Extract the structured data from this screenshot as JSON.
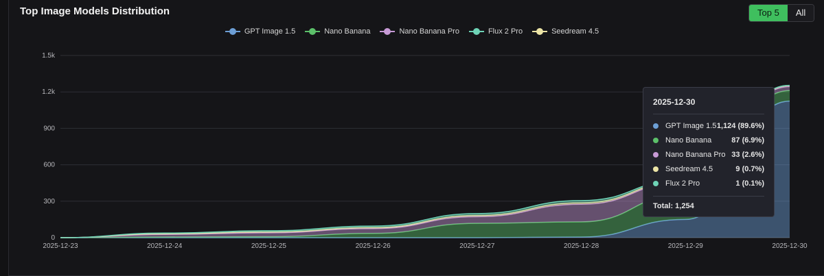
{
  "header": {
    "title": "Top Image Models Distribution",
    "toggle": {
      "top5_label": "Top 5",
      "all_label": "All",
      "active": "Top 5"
    }
  },
  "legend": [
    {
      "label": "GPT Image 1.5",
      "color": "#6d9fd6"
    },
    {
      "label": "Nano Banana",
      "color": "#5cc06a"
    },
    {
      "label": "Nano Banana Pro",
      "color": "#c79ad6"
    },
    {
      "label": "Flux 2 Pro",
      "color": "#6ed3b6"
    },
    {
      "label": "Seedream 4.5",
      "color": "#ece4a6"
    }
  ],
  "chart_data": {
    "type": "area",
    "stacked": true,
    "x": [
      "2025-12-23",
      "2025-12-24",
      "2025-12-25",
      "2025-12-26",
      "2025-12-27",
      "2025-12-28",
      "2025-12-29",
      "2025-12-30"
    ],
    "ylim": [
      0,
      1500
    ],
    "yticks": [
      "0",
      "300",
      "600",
      "900",
      "1.2k",
      "1.5k"
    ],
    "grid": true,
    "legend_position": "top-center",
    "series": [
      {
        "name": "GPT Image 1.5",
        "color": "#6d9fd6",
        "values": [
          0,
          0,
          0,
          0,
          0,
          5,
          150,
          1124
        ]
      },
      {
        "name": "Nano Banana",
        "color": "#5cc06a",
        "values": [
          0,
          5,
          8,
          35,
          118,
          125,
          210,
          87
        ]
      },
      {
        "name": "Nano Banana Pro",
        "color": "#c79ad6",
        "values": [
          0,
          22,
          32,
          40,
          55,
          145,
          100,
          33
        ]
      },
      {
        "name": "Seedream 4.5",
        "color": "#ece4a6",
        "values": [
          0,
          5,
          7,
          8,
          10,
          12,
          10,
          9
        ]
      },
      {
        "name": "Flux 2 Pro",
        "color": "#6ed3b6",
        "values": [
          0,
          6,
          10,
          12,
          15,
          18,
          10,
          1
        ]
      }
    ]
  },
  "tooltip": {
    "date": "2025-12-30",
    "rows": [
      {
        "name": "GPT Image 1.5",
        "value": "1,124 (89.6%)",
        "color": "#6d9fd6"
      },
      {
        "name": "Nano Banana",
        "value": "87 (6.9%)",
        "color": "#5cc06a"
      },
      {
        "name": "Nano Banana Pro",
        "value": "33 (2.6%)",
        "color": "#c79ad6"
      },
      {
        "name": "Seedream 4.5",
        "value": "9 (0.7%)",
        "color": "#ece4a6"
      },
      {
        "name": "Flux 2 Pro",
        "value": "1 (0.1%)",
        "color": "#6ed3b6"
      }
    ],
    "total": "Total: 1,254"
  }
}
